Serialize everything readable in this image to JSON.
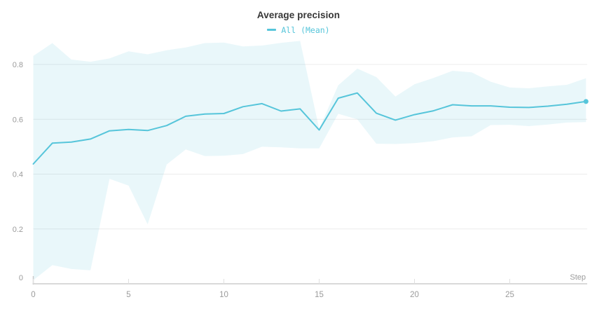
{
  "chart_data": {
    "type": "line",
    "title": "Average precision",
    "xlabel": "Step",
    "legend": [
      {
        "label": "All (Mean)",
        "color": "#56c5da"
      }
    ],
    "legend_position": "top-center",
    "grid": "horizontal",
    "x": [
      0,
      1,
      2,
      3,
      4,
      5,
      6,
      7,
      8,
      9,
      10,
      11,
      12,
      13,
      14,
      15,
      16,
      17,
      18,
      19,
      20,
      21,
      22,
      23,
      24,
      25,
      26,
      27,
      28,
      29
    ],
    "xticks": [
      0,
      5,
      10,
      15,
      20,
      25
    ],
    "xtick_labels": [
      "0",
      "5",
      "10",
      "15",
      "20",
      "25"
    ],
    "yticks": [
      0,
      0.2,
      0.4,
      0.6,
      0.8
    ],
    "ytick_labels": [
      "0",
      "0.2",
      "0.4",
      "0.6",
      "0.8"
    ],
    "ylim": [
      0,
      0.9
    ],
    "xlim": [
      0,
      29.5
    ],
    "series": [
      {
        "name": "All (Mean)",
        "values": [
          0.437,
          0.513,
          0.517,
          0.528,
          0.558,
          0.563,
          0.559,
          0.577,
          0.611,
          0.619,
          0.621,
          0.646,
          0.657,
          0.63,
          0.638,
          0.561,
          0.677,
          0.696,
          0.622,
          0.597,
          0.617,
          0.631,
          0.653,
          0.649,
          0.649,
          0.644,
          0.643,
          0.648,
          0.655,
          0.665
        ]
      }
    ],
    "band": {
      "name": "min/max range",
      "upper": [
        0.831,
        0.878,
        0.818,
        0.81,
        0.822,
        0.848,
        0.837,
        0.852,
        0.862,
        0.878,
        0.88,
        0.866,
        0.869,
        0.879,
        0.886,
        0.565,
        0.724,
        0.785,
        0.754,
        0.683,
        0.728,
        0.751,
        0.777,
        0.771,
        0.737,
        0.716,
        0.713,
        0.72,
        0.726,
        0.75
      ],
      "lower": [
        0.013,
        0.068,
        0.054,
        0.049,
        0.383,
        0.358,
        0.217,
        0.435,
        0.49,
        0.466,
        0.467,
        0.473,
        0.5,
        0.498,
        0.494,
        0.494,
        0.62,
        0.6,
        0.511,
        0.51,
        0.513,
        0.52,
        0.534,
        0.538,
        0.579,
        0.58,
        0.575,
        0.581,
        0.588,
        0.59
      ]
    },
    "colors": {
      "line": "#56c5da",
      "band_fill": "rgba(86,197,218,0.13)",
      "grid": "#ececec",
      "axis": "#d9d9d9",
      "tick": "#e0e0e0",
      "axis_stub": "#c9c9c9",
      "tick_text": "#9b9b9b",
      "title_text": "#363636"
    },
    "endpoint_dot": true
  }
}
